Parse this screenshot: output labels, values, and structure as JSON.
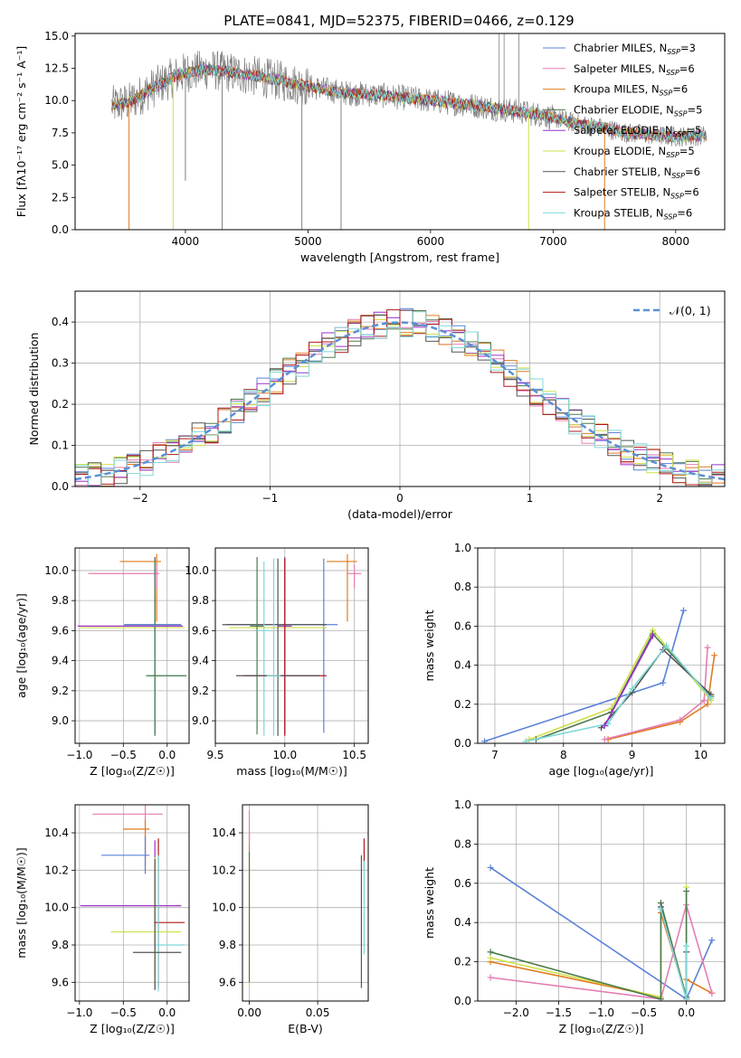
{
  "figure_title": "PLATE=0841, MJD=52375, FIBERID=0466, z=0.129",
  "colors": {
    "chabrier_miles": "#5a82d8",
    "salpeter_miles": "#e47db3",
    "kroupa_miles": "#e07b1f",
    "chabrier_elodie": "#4e7a4e",
    "salpeter_elodie": "#9b30c8",
    "kroupa_elodie": "#cfe04a",
    "chabrier_stelib": "#555555",
    "salpeter_stelib": "#b01818",
    "kroupa_stelib": "#7fd8d8",
    "data": "#808080",
    "normal": "#5b8fd6"
  },
  "chart_data": [
    {
      "id": "spectrum",
      "type": "line",
      "title": "PLATE=0841, MJD=52375, FIBERID=0466, z=0.129",
      "xlabel": "wavelength [Angstrom, rest frame]",
      "ylabel": "Flux [fλ10⁻¹⁷ erg cm⁻² s⁻¹ A⁻¹]",
      "xlim": [
        3100,
        8400
      ],
      "ylim": [
        0,
        15.2
      ],
      "xticks": [
        "4000",
        "5000",
        "6000",
        "7000",
        "8000"
      ],
      "yticks": [
        "0.0",
        "2.5",
        "5.0",
        "7.5",
        "10.0",
        "12.5",
        "15.0"
      ],
      "legend_position": "top-right",
      "legend": [
        "Chabrier MILES, N",
        "Salpeter MILES, N",
        "Kroupa MILES, N",
        "Chabrier ELODIE, N",
        "Salpeter ELODIE, N",
        "Kroupa ELODIE, N",
        "Chabrier STELIB, N",
        "Salpeter STELIB, N",
        "Kroupa STELIB, N"
      ],
      "legend_sub": "SSP",
      "legend_nssp": [
        "=3",
        "=6",
        "=6",
        "=5",
        "=5",
        "=5",
        "=6",
        "=6",
        "=6"
      ],
      "continuum": [
        [
          3400,
          9.6
        ],
        [
          3550,
          9.9
        ],
        [
          3700,
          10.8
        ],
        [
          3900,
          11.8
        ],
        [
          4000,
          12.2
        ],
        [
          4200,
          12.4
        ],
        [
          4500,
          12.0
        ],
        [
          4800,
          11.5
        ],
        [
          5000,
          11.1
        ],
        [
          5300,
          10.6
        ],
        [
          5600,
          10.4
        ],
        [
          6000,
          10.0
        ],
        [
          6300,
          9.7
        ],
        [
          6600,
          9.3
        ],
        [
          6900,
          8.9
        ],
        [
          7200,
          8.2
        ],
        [
          7400,
          7.9
        ],
        [
          7600,
          7.5
        ],
        [
          8000,
          7.2
        ],
        [
          8250,
          7.3
        ]
      ],
      "drops": [
        [
          3540,
          0
        ],
        [
          3900,
          0
        ],
        [
          4000,
          3.8
        ],
        [
          4300,
          0
        ],
        [
          4950,
          0
        ],
        [
          5270,
          0
        ],
        [
          6800,
          0
        ],
        [
          7420,
          0
        ]
      ],
      "spikes": [
        [
          6560,
          15.2
        ],
        [
          6600,
          15.2
        ],
        [
          6720,
          15.2
        ]
      ]
    },
    {
      "id": "residuals",
      "type": "histogram",
      "xlabel": "(data-model)/error",
      "ylabel": "Normed distribution",
      "xlim": [
        -2.5,
        2.5
      ],
      "ylim": [
        0,
        0.475
      ],
      "xticks": [
        "−2",
        "−1",
        "0",
        "1",
        "2"
      ],
      "yticks": [
        "0.0",
        "0.1",
        "0.2",
        "0.3",
        "0.4"
      ],
      "legend": [
        "𝒩(0, 1)"
      ],
      "legend_position": "top-right",
      "bin_width": 0.1,
      "bins_left_edge": -2.5
    },
    {
      "id": "age-vs-Z",
      "type": "scatter",
      "xlabel": "Z [log₁₀(Z/Z☉)]",
      "ylabel": "age  [log₁₀(age/yr)]",
      "xlim": [
        -1.05,
        0.25
      ],
      "ylim": [
        8.85,
        10.15
      ],
      "xticks": [
        "−1.0",
        "−0.5",
        "0.0"
      ],
      "yticks": [
        "9.0",
        "9.2",
        "9.4",
        "9.6",
        "9.8",
        "10.0"
      ],
      "points": [
        {
          "x": -0.12,
          "xerr": [
            0.42,
            0.05
          ],
          "y": 10.06,
          "yerr": [
            0.4,
            0.05
          ],
          "c": "kroupa_miles"
        },
        {
          "x": -0.12,
          "xerr": [
            0.78,
            0.03
          ],
          "y": 9.98,
          "yerr": [
            0.1,
            0.06
          ],
          "c": "salpeter_miles"
        },
        {
          "x": -0.14,
          "xerr": [
            0.88,
            0.32
          ],
          "y": 9.63,
          "yerr": [
            0.72,
            0.46
          ],
          "c": "salpeter_elodie"
        },
        {
          "x": -0.14,
          "xerr": [
            0.85,
            0.34
          ],
          "y": 9.62,
          "yerr": [
            0.7,
            0.46
          ],
          "c": "kroupa_elodie"
        },
        {
          "x": -0.14,
          "xerr": [
            0.35,
            0.3
          ],
          "y": 9.64,
          "yerr": [
            0.72,
            0.44
          ],
          "c": "chabrier_stelib"
        },
        {
          "x": -0.14,
          "xerr": [
            0.35,
            0.3
          ],
          "y": 9.64,
          "yerr": [
            0.7,
            0.44
          ],
          "c": "chabrier_miles"
        },
        {
          "x": -0.14,
          "xerr": [
            0.1,
            0.36
          ],
          "y": 9.3,
          "yerr": [
            0.4,
            0.78
          ],
          "c": "kroupa_stelib"
        },
        {
          "x": -0.14,
          "xerr": [
            0.1,
            0.36
          ],
          "y": 9.3,
          "yerr": [
            0.4,
            0.78
          ],
          "c": "chabrier_elodie"
        }
      ]
    },
    {
      "id": "age-vs-mass",
      "type": "scatter",
      "xlabel": "mass [log₁₀(M/M☉)]",
      "ylabel": "",
      "xlim": [
        9.5,
        10.6
      ],
      "ylim": [
        8.85,
        10.15
      ],
      "xticks": [
        "9.5",
        "10.0",
        "10.5"
      ],
      "yticks": [
        "9.0",
        "9.2",
        "9.4",
        "9.6",
        "9.8",
        "10.0"
      ],
      "points": [
        {
          "x": 10.45,
          "xerr": [
            0.15,
            0.07
          ],
          "y": 10.06,
          "yerr": [
            0.4,
            0.05
          ],
          "c": "kroupa_miles"
        },
        {
          "x": 10.5,
          "xerr": [
            0.05,
            0.05
          ],
          "y": 9.98,
          "yerr": [
            0.1,
            0.06
          ],
          "c": "salpeter_miles"
        },
        {
          "x": 10.28,
          "xerr": [
            0.7,
            0.1
          ],
          "y": 9.64,
          "yerr": [
            0.72,
            0.44
          ],
          "c": "chabrier_miles"
        },
        {
          "x": 10.0,
          "xerr": [
            0.45,
            0.3
          ],
          "y": 9.64,
          "yerr": [
            0.72,
            0.44
          ],
          "c": "chabrier_stelib"
        },
        {
          "x": 10.0,
          "xerr": [
            0.4,
            0.3
          ],
          "y": 9.62,
          "yerr": [
            0.7,
            0.46
          ],
          "c": "kroupa_elodie"
        },
        {
          "x": 10.0,
          "xerr": [
            0.05,
            0.05
          ],
          "y": 9.63,
          "yerr": [
            0.72,
            0.46
          ],
          "c": "salpeter_elodie"
        },
        {
          "x": 9.8,
          "xerr": [
            0.05,
            0.05
          ],
          "y": 9.63,
          "yerr": [
            0.72,
            0.46
          ],
          "c": "chabrier_elodie"
        },
        {
          "x": 9.85,
          "xerr": [
            0.05,
            0.05
          ],
          "y": 9.6,
          "yerr": [
            0.7,
            0.46
          ],
          "c": "kroupa_stelib"
        },
        {
          "x": 10.0,
          "xerr": [
            0.3,
            0.3
          ],
          "y": 9.3,
          "yerr": [
            0.4,
            0.78
          ],
          "c": "salpeter_stelib"
        },
        {
          "x": 9.95,
          "xerr": [
            0.3,
            0.3
          ],
          "y": 9.3,
          "yerr": [
            0.4,
            0.78
          ],
          "c": "chabrier_stelib"
        },
        {
          "x": 9.92,
          "xerr": [
            0.05,
            0.05
          ],
          "y": 9.3,
          "yerr": [
            0.4,
            0.78
          ],
          "c": "kroupa_stelib"
        }
      ]
    },
    {
      "id": "weight-vs-age",
      "type": "line",
      "xlabel": "age  [log₁₀(age/yr)]",
      "ylabel": "mass weight",
      "xlim": [
        6.75,
        10.35
      ],
      "ylim": [
        0,
        1.0
      ],
      "xticks": [
        "7",
        "8",
        "9",
        "10"
      ],
      "yticks": [
        "0.0",
        "0.2",
        "0.4",
        "0.6",
        "0.8",
        "1.0"
      ],
      "series": [
        {
          "c": "chabrier_miles",
          "x": [
            6.85,
            9.45,
            9.75
          ],
          "y": [
            0.01,
            0.31,
            0.68
          ]
        },
        {
          "c": "kroupa_miles",
          "x": [
            8.65,
            9.7,
            10.1,
            10.2
          ],
          "y": [
            0.02,
            0.11,
            0.2,
            0.45
          ]
        },
        {
          "c": "salpeter_miles",
          "x": [
            8.6,
            9.7,
            10.05,
            10.1
          ],
          "y": [
            0.02,
            0.12,
            0.22,
            0.49
          ]
        },
        {
          "c": "kroupa_elodie",
          "x": [
            7.5,
            8.7,
            9.3,
            10.15
          ],
          "y": [
            0.02,
            0.18,
            0.58,
            0.22
          ]
        },
        {
          "c": "chabrier_elodie",
          "x": [
            7.6,
            8.7,
            9.3,
            10.15
          ],
          "y": [
            0.02,
            0.16,
            0.56,
            0.24
          ]
        },
        {
          "c": "chabrier_stelib",
          "x": [
            8.55,
            9.0,
            9.45,
            10.15
          ],
          "y": [
            0.08,
            0.26,
            0.48,
            0.25
          ]
        },
        {
          "c": "kroupa_stelib",
          "x": [
            7.45,
            8.65,
            9.0,
            9.5,
            10.15
          ],
          "y": [
            0.01,
            0.1,
            0.28,
            0.5,
            0.23
          ]
        },
        {
          "c": "salpeter_elodie",
          "x": [
            8.6,
            9.3
          ],
          "y": [
            0.09,
            0.55
          ]
        }
      ]
    },
    {
      "id": "mass-vs-Z",
      "type": "scatter",
      "xlabel": "Z [log₁₀(Z/Z☉)]",
      "ylabel": "mass [log₁₀(M/M☉)]",
      "xlim": [
        -1.05,
        0.25
      ],
      "ylim": [
        9.5,
        10.55
      ],
      "xticks": [
        "−1.0",
        "−0.5",
        "0.0"
      ],
      "yticks": [
        "9.6",
        "9.8",
        "10.0",
        "10.2",
        "10.4"
      ],
      "points": [
        {
          "x": -0.25,
          "xerr": [
            0.6,
            0.2
          ],
          "y": 10.5,
          "yerr": [
            0.3,
            0.05
          ],
          "c": "salpeter_miles"
        },
        {
          "x": -0.25,
          "xerr": [
            0.25,
            0.05
          ],
          "y": 10.42,
          "yerr": [
            0.2,
            0.05
          ],
          "c": "kroupa_miles"
        },
        {
          "x": -0.25,
          "xerr": [
            0.5,
            0.05
          ],
          "y": 10.28,
          "yerr": [
            0.1,
            0.1
          ],
          "c": "chabrier_miles"
        },
        {
          "x": -0.14,
          "xerr": [
            0.85,
            0.3
          ],
          "y": 10.01,
          "yerr": [
            0.45,
            0.35
          ],
          "c": "salpeter_elodie"
        },
        {
          "x": -0.14,
          "xerr": [
            0.5,
            0.3
          ],
          "y": 9.87,
          "yerr": [
            0.3,
            0.4
          ],
          "c": "kroupa_elodie"
        },
        {
          "x": -0.1,
          "xerr": [
            0.05,
            0.3
          ],
          "y": 9.92,
          "yerr": [
            0.35,
            0.45
          ],
          "c": "salpeter_stelib"
        },
        {
          "x": -0.1,
          "xerr": [
            0.05,
            0.3
          ],
          "y": 9.8,
          "yerr": [
            0.25,
            0.48
          ],
          "c": "kroupa_stelib"
        },
        {
          "x": -0.14,
          "xerr": [
            0.25,
            0.3
          ],
          "y": 9.76,
          "yerr": [
            0.2,
            0.5
          ],
          "c": "chabrier_stelib"
        }
      ]
    },
    {
      "id": "mass-vs-EBV",
      "type": "scatter",
      "xlabel": "E(B-V)",
      "ylabel": "",
      "xlim": [
        -0.005,
        0.087
      ],
      "ylim": [
        9.5,
        10.55
      ],
      "xticks": [
        "0.00",
        "0.05"
      ],
      "yticks": [
        "9.6",
        "9.8",
        "10.0",
        "10.2",
        "10.4"
      ],
      "points": [
        {
          "x": 0.0,
          "xerr": [
            0.0,
            0.0
          ],
          "y": 10.35,
          "yerr": [
            0.05,
            0.05
          ],
          "c": "kroupa_miles"
        },
        {
          "x": 0.0,
          "xerr": [
            0.0,
            0.0
          ],
          "y": 10.4,
          "yerr": [
            0.05,
            0.12
          ],
          "c": "salpeter_miles"
        },
        {
          "x": 0.0,
          "xerr": [
            0.0,
            0.0
          ],
          "y": 10.0,
          "yerr": [
            0.42,
            0.3
          ],
          "c": "kroupa_elodie"
        },
        {
          "x": 0.0,
          "xerr": [
            0.0,
            0.0
          ],
          "y": 10.0,
          "yerr": [
            0.4,
            0.3
          ],
          "c": "chabrier_elodie"
        },
        {
          "x": 0.082,
          "xerr": [
            0.0,
            0.0
          ],
          "y": 9.92,
          "yerr": [
            0.35,
            0.36
          ],
          "c": "chabrier_stelib"
        },
        {
          "x": 0.084,
          "xerr": [
            0.0,
            0.0
          ],
          "y": 10.3,
          "yerr": [
            0.1,
            0.07
          ],
          "c": "salpeter_stelib"
        },
        {
          "x": 0.084,
          "xerr": [
            0.0,
            0.0
          ],
          "y": 9.95,
          "yerr": [
            0.2,
            0.3
          ],
          "c": "kroupa_stelib"
        }
      ]
    },
    {
      "id": "weight-vs-Z",
      "type": "line",
      "xlabel": "Z [log₁₀(Z/Z☉)]",
      "ylabel": "mass weight",
      "xlim": [
        -2.45,
        0.45
      ],
      "ylim": [
        0,
        1.0
      ],
      "xticks": [
        "−2.0",
        "−1.5",
        "−1.0",
        "−0.5",
        "0.0"
      ],
      "yticks": [
        "0.0",
        "0.2",
        "0.4",
        "0.6",
        "0.8",
        "1.0"
      ],
      "series": [
        {
          "c": "chabrier_miles",
          "x": [
            -2.3,
            0.0,
            0.3
          ],
          "y": [
            0.68,
            0.01,
            0.31
          ]
        },
        {
          "c": "kroupa_miles",
          "x": [
            -2.3,
            -0.3,
            -0.3,
            0.0,
            0.0,
            0.3
          ],
          "y": [
            0.2,
            0.02,
            0.45,
            0.02,
            0.11,
            0.04
          ]
        },
        {
          "c": "salpeter_miles",
          "x": [
            -2.3,
            -0.3,
            0.0,
            0.3
          ],
          "y": [
            0.12,
            0.01,
            0.49,
            0.04
          ]
        },
        {
          "c": "kroupa_elodie",
          "x": [
            -2.3,
            -0.3,
            -0.3,
            0.0,
            0.0
          ],
          "y": [
            0.22,
            0.02,
            0.5,
            0.02,
            0.58
          ]
        },
        {
          "c": "chabrier_elodie",
          "x": [
            -2.3,
            -0.3,
            -0.3,
            0.0,
            0.0
          ],
          "y": [
            0.25,
            0.01,
            0.5,
            0.02,
            0.56
          ]
        },
        {
          "c": "chabrier_stelib",
          "x": [
            -0.3,
            0.0,
            0.0
          ],
          "y": [
            0.48,
            0.01,
            0.25
          ]
        },
        {
          "c": "kroupa_stelib",
          "x": [
            -0.3,
            0.0,
            0.0
          ],
          "y": [
            0.47,
            0.01,
            0.28
          ]
        }
      ]
    }
  ]
}
